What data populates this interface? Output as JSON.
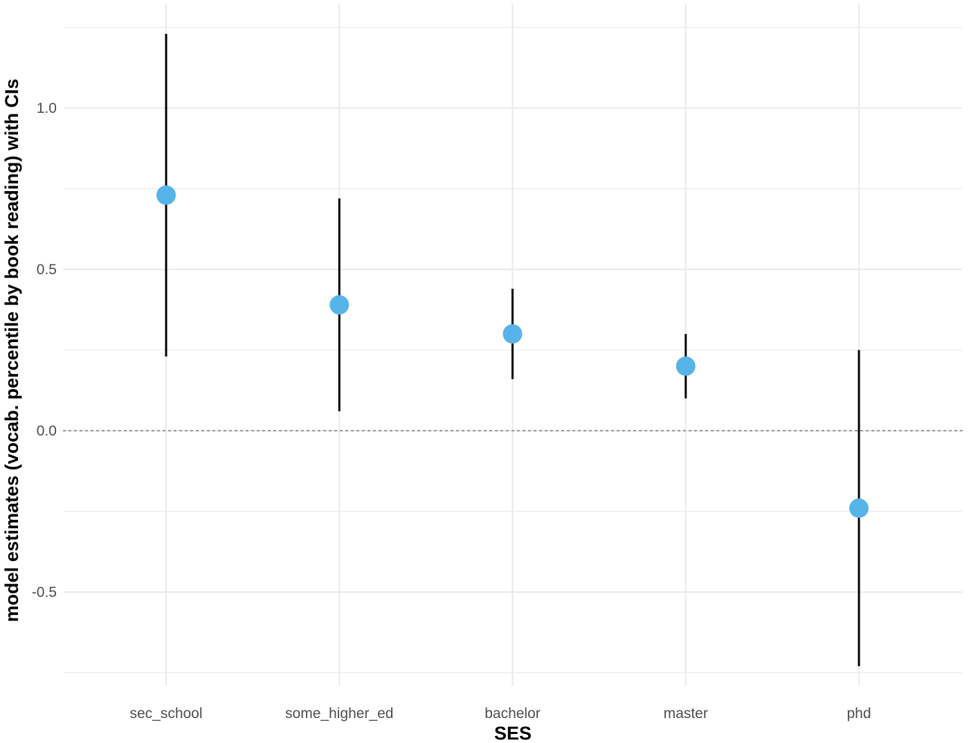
{
  "chart_data": {
    "type": "scatter",
    "subtype": "point-range",
    "xlabel": "SES",
    "ylabel": "model estimates (vocab. percentile by book reading) with CIs",
    "categories": [
      "sec_school",
      "some_higher_ed",
      "bachelor",
      "master",
      "phd"
    ],
    "series": [
      {
        "estimate": [
          0.73,
          0.39,
          0.3,
          0.2,
          -0.24
        ],
        "ci_lower": [
          0.23,
          0.06,
          0.16,
          0.1,
          -0.73
        ],
        "ci_upper": [
          1.23,
          0.72,
          0.44,
          0.3,
          0.25
        ]
      }
    ],
    "yticks": [
      {
        "value": -0.5,
        "label": "-0.5"
      },
      {
        "value": 0.0,
        "label": "0.0"
      },
      {
        "value": 0.5,
        "label": "0.5"
      },
      {
        "value": 1.0,
        "label": "1.0"
      }
    ],
    "ylim": [
      -0.75,
      1.33
    ],
    "reference_line": {
      "y": 0,
      "style": "dotted"
    },
    "grid": true,
    "legend": "none",
    "colors": {
      "point": "#56B4E9",
      "errorbar": "#000000",
      "grid": "#EBEBEB",
      "reference": "#9a9a9a",
      "tick_label": "#4d4d4d"
    }
  }
}
